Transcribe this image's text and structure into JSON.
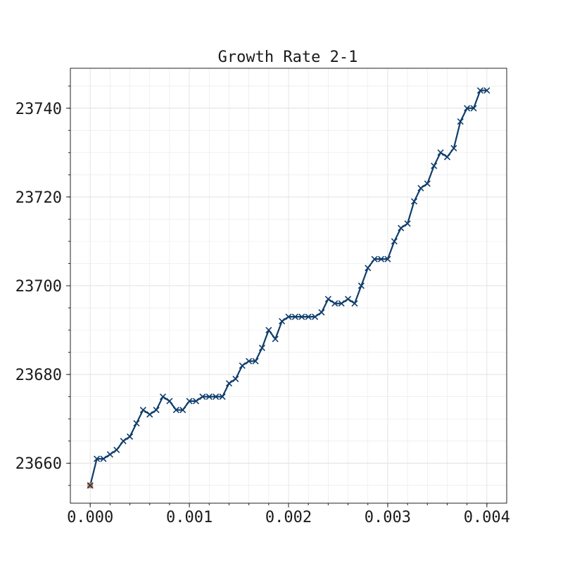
{
  "chart_data": {
    "type": "line",
    "title": "Growth Rate 2-1",
    "xlabel": "",
    "ylabel": "",
    "xlim": [
      -0.0002,
      0.0042
    ],
    "ylim": [
      23651,
      23749
    ],
    "grid": true,
    "x_ticks": [
      {
        "value": 0.0,
        "label": "0.000"
      },
      {
        "value": 0.001,
        "label": "0.001"
      },
      {
        "value": 0.002,
        "label": "0.002"
      },
      {
        "value": 0.003,
        "label": "0.003"
      },
      {
        "value": 0.004,
        "label": "0.004"
      }
    ],
    "x_minor_step": 0.0002,
    "y_ticks": [
      {
        "value": 23660,
        "label": "23660"
      },
      {
        "value": 23680,
        "label": "23680"
      },
      {
        "value": 23700,
        "label": "23700"
      },
      {
        "value": 23720,
        "label": "23720"
      },
      {
        "value": 23740,
        "label": "23740"
      }
    ],
    "y_minor_step": 5,
    "marker": "x",
    "line_color": "#0f3d6b",
    "start_marker_color": "#e07b39",
    "grid_color": "#ebebeb",
    "series": [
      {
        "x": [
          0.0,
          6.67e-05,
          0.0001333,
          0.0002,
          0.0002667,
          0.0003333,
          0.0004,
          0.0004667,
          0.0005333,
          0.0006,
          0.0006667,
          0.0007333,
          0.0008,
          0.0008667,
          0.0009333,
          0.001,
          0.0010667,
          0.0011333,
          0.0012,
          0.0012667,
          0.0013333,
          0.0014,
          0.0014667,
          0.0015333,
          0.0016,
          0.0016667,
          0.0017333,
          0.0018,
          0.0018667,
          0.0019333,
          0.002,
          0.0020667,
          0.0021333,
          0.0022,
          0.0022667,
          0.0023333,
          0.0024,
          0.0024667,
          0.0025333,
          0.0026,
          0.0026667,
          0.0027333,
          0.0028,
          0.0028667,
          0.0029333,
          0.003,
          0.0030667,
          0.0031333,
          0.0032,
          0.0032667,
          0.0033333,
          0.0034,
          0.0034667,
          0.0035333,
          0.0036,
          0.0036667,
          0.0037333,
          0.0038,
          0.0038667,
          0.0039333,
          0.004
        ],
        "y": [
          23655,
          23661,
          23661,
          23662,
          23663,
          23665,
          23666,
          23669,
          23672,
          23671,
          23672,
          23675,
          23674,
          23672,
          23672,
          23674,
          23674,
          23675,
          23675,
          23675,
          23675,
          23678,
          23679,
          23682,
          23683,
          23683,
          23686,
          23690,
          23688,
          23692,
          23693,
          23693,
          23693,
          23693,
          23693,
          23694,
          23697,
          23696,
          23696,
          23697,
          23696,
          23700,
          23704,
          23706,
          23706,
          23706,
          23710,
          23713,
          23714,
          23719,
          23722,
          23723,
          23727,
          23730,
          23729,
          23731,
          23737,
          23740,
          23740,
          23744,
          23744
        ]
      }
    ]
  }
}
